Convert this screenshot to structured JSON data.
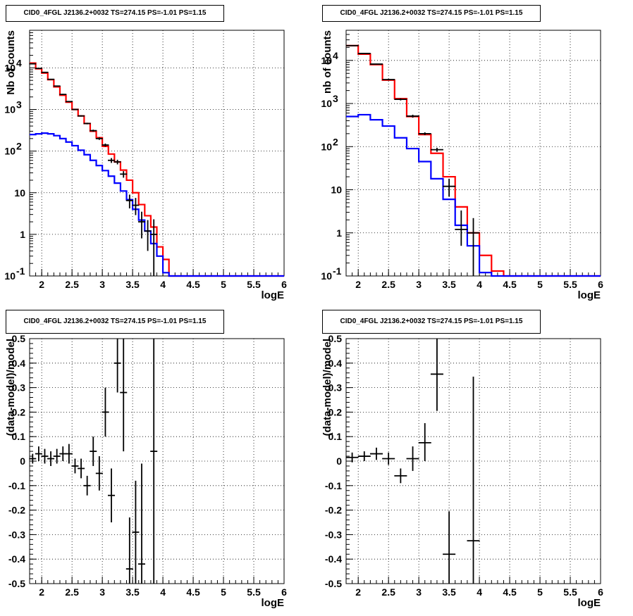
{
  "panels": [
    {
      "id": "top-left",
      "title": "CID0_4FGL J2136.2+0032 TS=274.15 PS=-1.01 PS=1.15"
    },
    {
      "id": "top-right",
      "title": "CID0_4FGL J2136.2+0032 TS=274.15 PS=-1.01 PS=1.15"
    },
    {
      "id": "bottom-left",
      "title": "CID0_4FGL J2136.2+0032 TS=274.15 PS=-1.01 PS=1.15"
    },
    {
      "id": "bottom-right",
      "title": "CID0_4FGL J2136.2+0032 TS=274.15 PS=-1.01 PS=1.15"
    }
  ],
  "chart_data": [
    {
      "type": "line",
      "title": "CID0_4FGL J2136.2+0032 TS=274.15 PS=-1.01 PS=1.15",
      "xlabel": "logE",
      "ylabel": "Nb of counts",
      "xlim": [
        1.8,
        6.0
      ],
      "ylim": [
        0.1,
        80000
      ],
      "yscale": "log",
      "grid": true,
      "x_ticks": [
        "2",
        "2.5",
        "3",
        "3.5",
        "4",
        "4.5",
        "5",
        "5.5",
        "6"
      ],
      "y_ticks": [
        "10^-1",
        "1",
        "10",
        "10^2",
        "10^3",
        "10^4"
      ],
      "series": [
        {
          "color": "#ff0000",
          "bin_edges": [
            1.8,
            1.9,
            2.0,
            2.1,
            2.2,
            2.3,
            2.4,
            2.5,
            2.6,
            2.7,
            2.8,
            2.9,
            3.0,
            3.1,
            3.2,
            3.3,
            3.4,
            3.5,
            3.6,
            3.7,
            3.8,
            3.9,
            4.0,
            4.1,
            4.2,
            4.3,
            4.4,
            4.5,
            4.6,
            4.7,
            4.8,
            4.9,
            5.0,
            5.1,
            5.2,
            5.3,
            5.4,
            5.5,
            5.6,
            5.7,
            5.8,
            5.9,
            6.0
          ],
          "values": [
            13000,
            9500,
            7500,
            5200,
            3500,
            2200,
            1500,
            1000,
            700,
            460,
            300,
            210,
            130,
            85,
            55,
            35,
            20,
            10,
            5.2,
            2.8,
            1.5,
            0.5,
            0.25,
            0.1,
            0.1,
            0.1,
            0.1,
            0.1,
            0.1,
            0.1,
            0.1,
            0.1,
            0.1,
            0.1,
            0.1,
            0.1,
            0.1,
            0.1,
            0.1,
            0.1,
            0.1,
            0.1
          ]
        },
        {
          "color": "#0000ff",
          "bin_edges": [
            1.8,
            1.9,
            2.0,
            2.1,
            2.2,
            2.3,
            2.4,
            2.5,
            2.6,
            2.7,
            2.8,
            2.9,
            3.0,
            3.1,
            3.2,
            3.3,
            3.4,
            3.5,
            3.6,
            3.7,
            3.8,
            3.9,
            4.0,
            4.1,
            4.2,
            4.3,
            4.4,
            4.5,
            4.6,
            4.7,
            4.8,
            4.9,
            5.0,
            5.1,
            5.2,
            5.3,
            5.4,
            5.5,
            5.6,
            5.7,
            5.8,
            5.9,
            6.0
          ],
          "values": [
            250,
            260,
            270,
            260,
            235,
            200,
            165,
            135,
            105,
            82,
            60,
            45,
            34,
            25,
            17,
            11,
            6.8,
            4,
            2.2,
            1.2,
            0.6,
            0.3,
            0.12,
            0.1,
            0.1,
            0.1,
            0.1,
            0.1,
            0.1,
            0.1,
            0.1,
            0.1,
            0.1,
            0.1,
            0.1,
            0.1,
            0.1,
            0.1,
            0.1,
            0.1,
            0.1,
            0.1
          ]
        }
      ],
      "points": [
        {
          "x": 1.85,
          "y": 12500,
          "lo": 12300,
          "hi": 12700
        },
        {
          "x": 1.95,
          "y": 9700,
          "lo": 9500,
          "hi": 9900
        },
        {
          "x": 2.05,
          "y": 7800,
          "lo": 7600,
          "hi": 8000
        },
        {
          "x": 2.15,
          "y": 5300,
          "lo": 5150,
          "hi": 5450
        },
        {
          "x": 2.25,
          "y": 3650,
          "lo": 3550,
          "hi": 3750
        },
        {
          "x": 2.35,
          "y": 2300,
          "lo": 2230,
          "hi": 2370
        },
        {
          "x": 2.45,
          "y": 1550,
          "lo": 1500,
          "hi": 1600
        },
        {
          "x": 2.55,
          "y": 1000,
          "lo": 970,
          "hi": 1030
        },
        {
          "x": 2.65,
          "y": 700,
          "lo": 675,
          "hi": 725
        },
        {
          "x": 2.75,
          "y": 460,
          "lo": 440,
          "hi": 480
        },
        {
          "x": 2.85,
          "y": 310,
          "lo": 293,
          "hi": 327
        },
        {
          "x": 2.95,
          "y": 200,
          "lo": 186,
          "hi": 214
        },
        {
          "x": 3.05,
          "y": 140,
          "lo": 128,
          "hi": 152
        },
        {
          "x": 3.15,
          "y": 60,
          "lo": 52,
          "hi": 68
        },
        {
          "x": 3.25,
          "y": 55,
          "lo": 48,
          "hi": 62
        },
        {
          "x": 3.35,
          "y": 28,
          "lo": 23,
          "hi": 33
        },
        {
          "x": 3.45,
          "y": 6.5,
          "lo": 4.2,
          "hi": 9
        },
        {
          "x": 3.55,
          "y": 5,
          "lo": 2.9,
          "hi": 7.5
        },
        {
          "x": 3.65,
          "y": 2,
          "lo": 0.8,
          "hi": 3.5
        },
        {
          "x": 3.75,
          "y": 1.2,
          "lo": 0.4,
          "hi": 2.2
        },
        {
          "x": 3.85,
          "y": 1,
          "lo": 0.1,
          "hi": 2.3
        }
      ]
    },
    {
      "type": "line",
      "title": "CID0_4FGL J2136.2+0032 TS=274.15 PS=-1.01 PS=1.15",
      "xlabel": "logE",
      "ylabel": "nb of counts",
      "xlim": [
        1.8,
        6.0
      ],
      "ylim": [
        0.1,
        50000
      ],
      "yscale": "log",
      "grid": true,
      "x_ticks": [
        "2",
        "2.5",
        "3",
        "3.5",
        "4",
        "4.5",
        "5",
        "5.5",
        "6"
      ],
      "y_ticks": [
        "10^-1",
        "1",
        "10",
        "10^2",
        "10^3",
        "10^4"
      ],
      "series": [
        {
          "color": "#ff0000",
          "bin_edges": [
            1.8,
            2.0,
            2.2,
            2.4,
            2.6,
            2.8,
            3.0,
            3.2,
            3.4,
            3.6,
            3.8,
            4.0,
            4.2,
            4.4,
            4.6,
            4.8,
            5.0,
            5.2,
            5.4,
            5.6,
            5.8,
            6.0
          ],
          "values": [
            22000,
            14000,
            8000,
            3500,
            1300,
            500,
            190,
            70,
            20,
            4,
            1,
            0.3,
            0.13,
            0.1,
            0.1,
            0.1,
            0.1,
            0.1,
            0.1,
            0.1,
            0.1
          ]
        },
        {
          "color": "#0000ff",
          "bin_edges": [
            1.8,
            2.0,
            2.2,
            2.4,
            2.6,
            2.8,
            3.0,
            3.2,
            3.4,
            3.6,
            3.8,
            4.0,
            4.2,
            4.4,
            4.6,
            4.8,
            5.0,
            5.2,
            5.4,
            5.6,
            5.8,
            6.0
          ],
          "values": [
            500,
            550,
            420,
            300,
            160,
            90,
            45,
            18,
            6,
            1.5,
            0.5,
            0.12,
            0.1,
            0.1,
            0.1,
            0.1,
            0.1,
            0.1,
            0.1,
            0.1,
            0.1
          ]
        }
      ],
      "points": [
        {
          "x": 1.9,
          "y": 22000,
          "lo": 21700,
          "hi": 22300
        },
        {
          "x": 2.1,
          "y": 14500,
          "lo": 14250,
          "hi": 14750
        },
        {
          "x": 2.3,
          "y": 8200,
          "lo": 8000,
          "hi": 8400
        },
        {
          "x": 2.5,
          "y": 3600,
          "lo": 3480,
          "hi": 3720
        },
        {
          "x": 2.7,
          "y": 1250,
          "lo": 1180,
          "hi": 1320
        },
        {
          "x": 2.9,
          "y": 510,
          "lo": 470,
          "hi": 550
        },
        {
          "x": 3.1,
          "y": 200,
          "lo": 185,
          "hi": 215
        },
        {
          "x": 3.3,
          "y": 85,
          "lo": 76,
          "hi": 94
        },
        {
          "x": 3.5,
          "y": 12,
          "lo": 7,
          "hi": 18
        },
        {
          "x": 3.7,
          "y": 1.2,
          "lo": 0.5,
          "hi": 3.3
        },
        {
          "x": 3.9,
          "y": 1,
          "lo": 0.1,
          "hi": 2.2
        }
      ]
    },
    {
      "type": "scatter",
      "title": "CID0_4FGL J2136.2+0032 TS=274.15 PS=-1.01 PS=1.15",
      "xlabel": "logE",
      "ylabel": "(data-model)/model",
      "xlim": [
        1.8,
        6.0
      ],
      "ylim": [
        -0.5,
        0.5
      ],
      "grid": true,
      "x_ticks": [
        "2",
        "2.5",
        "3",
        "3.5",
        "4",
        "4.5",
        "5",
        "5.5",
        "6"
      ],
      "y_ticks": [
        "-0.5",
        "-0.4",
        "-0.3",
        "-0.2",
        "-0.1",
        "0",
        "0.1",
        "0.2",
        "0.3",
        "0.4",
        "0.5"
      ],
      "points": [
        {
          "x": 1.85,
          "y": 0.01,
          "lo": -0.01,
          "hi": 0.03
        },
        {
          "x": 1.95,
          "y": 0.03,
          "lo": 0.0,
          "hi": 0.06
        },
        {
          "x": 2.05,
          "y": 0.02,
          "lo": -0.01,
          "hi": 0.05
        },
        {
          "x": 2.15,
          "y": 0.01,
          "lo": -0.02,
          "hi": 0.04
        },
        {
          "x": 2.25,
          "y": 0.02,
          "lo": -0.01,
          "hi": 0.05
        },
        {
          "x": 2.35,
          "y": 0.03,
          "lo": 0.0,
          "hi": 0.06
        },
        {
          "x": 2.45,
          "y": 0.03,
          "lo": -0.01,
          "hi": 0.07
        },
        {
          "x": 2.55,
          "y": -0.02,
          "lo": -0.05,
          "hi": 0.01
        },
        {
          "x": 2.65,
          "y": -0.03,
          "lo": -0.07,
          "hi": 0.01
        },
        {
          "x": 2.75,
          "y": -0.1,
          "lo": -0.14,
          "hi": -0.06
        },
        {
          "x": 2.85,
          "y": 0.04,
          "lo": -0.02,
          "hi": 0.1
        },
        {
          "x": 2.95,
          "y": -0.05,
          "lo": -0.12,
          "hi": 0.02
        },
        {
          "x": 3.05,
          "y": 0.2,
          "lo": 0.1,
          "hi": 0.3
        },
        {
          "x": 3.15,
          "y": -0.14,
          "lo": -0.25,
          "hi": -0.03
        },
        {
          "x": 3.25,
          "y": 0.4,
          "lo": 0.28,
          "hi": 0.5
        },
        {
          "x": 3.35,
          "y": 0.28,
          "lo": 0.04,
          "hi": 0.5
        },
        {
          "x": 3.45,
          "y": -0.44,
          "lo": -0.5,
          "hi": -0.23
        },
        {
          "x": 3.55,
          "y": -0.29,
          "lo": -0.5,
          "hi": -0.08
        },
        {
          "x": 3.65,
          "y": -0.42,
          "lo": -0.5,
          "hi": -0.01
        },
        {
          "x": 3.85,
          "y": 0.04,
          "lo": -0.5,
          "hi": 0.5
        }
      ]
    },
    {
      "type": "scatter",
      "title": "CID0_4FGL J2136.2+0032 TS=274.15 PS=-1.01 PS=1.15",
      "xlabel": "logE",
      "ylabel": "(data-model)/model",
      "xlim": [
        1.8,
        6.0
      ],
      "ylim": [
        -0.5,
        0.5
      ],
      "grid": true,
      "x_ticks": [
        "2",
        "2.5",
        "3",
        "3.5",
        "4",
        "4.5",
        "5",
        "5.5",
        "6"
      ],
      "y_ticks": [
        "-0.5",
        "-0.4",
        "-0.3",
        "-0.2",
        "-0.1",
        "0",
        "0.1",
        "0.2",
        "0.3",
        "0.4",
        "0.5"
      ],
      "points": [
        {
          "x": 1.9,
          "y": 0.015,
          "lo": -0.005,
          "hi": 0.035
        },
        {
          "x": 2.1,
          "y": 0.02,
          "lo": 0.0,
          "hi": 0.04
        },
        {
          "x": 2.3,
          "y": 0.03,
          "lo": 0.005,
          "hi": 0.055
        },
        {
          "x": 2.5,
          "y": 0.01,
          "lo": -0.015,
          "hi": 0.035
        },
        {
          "x": 2.7,
          "y": -0.06,
          "lo": -0.09,
          "hi": -0.03
        },
        {
          "x": 2.9,
          "y": 0.01,
          "lo": -0.04,
          "hi": 0.06
        },
        {
          "x": 3.1,
          "y": 0.075,
          "lo": 0.0,
          "hi": 0.155
        },
        {
          "x": 3.3,
          "y": 0.355,
          "lo": 0.205,
          "hi": 0.5
        },
        {
          "x": 3.5,
          "y": -0.38,
          "lo": -0.5,
          "hi": -0.205
        },
        {
          "x": 3.9,
          "y": -0.325,
          "lo": -0.5,
          "hi": 0.345
        }
      ]
    }
  ]
}
